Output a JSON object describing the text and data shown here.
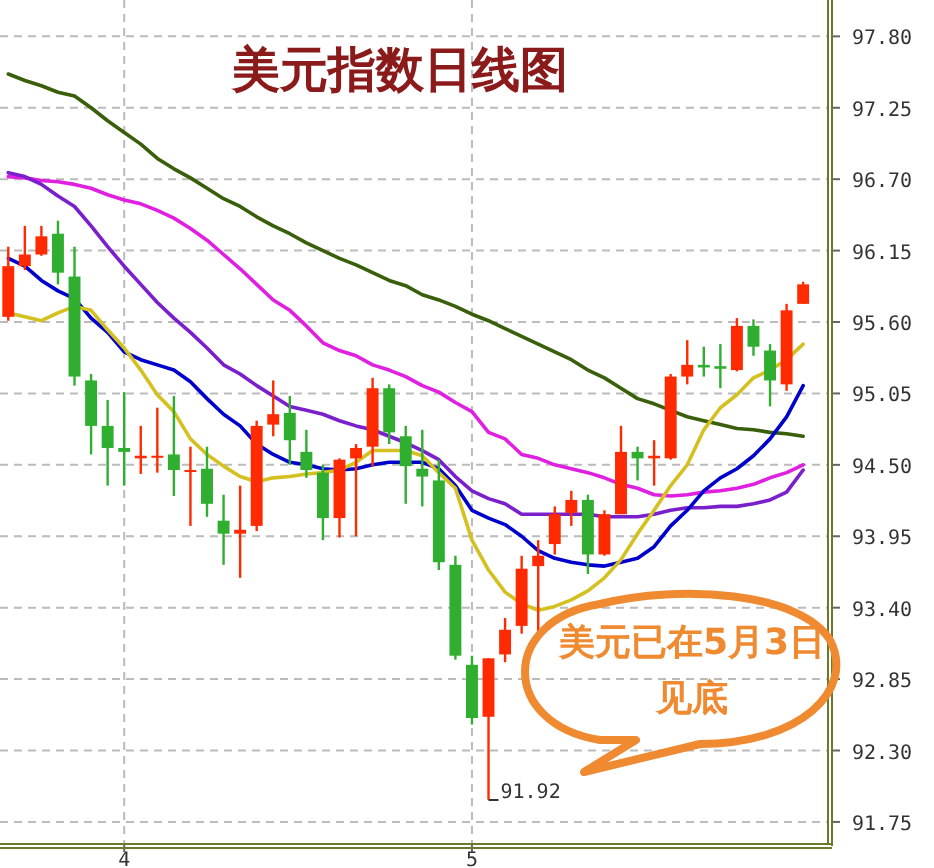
{
  "chart_data": {
    "type": "candlestick",
    "title": "美元指数日线图",
    "categories": [
      null,
      null,
      null,
      null,
      null,
      null,
      null,
      "4",
      null,
      null,
      null,
      null,
      null,
      null,
      null,
      null,
      null,
      null,
      null,
      null,
      null,
      null,
      null,
      null,
      null,
      null,
      null,
      null,
      "5",
      null,
      null,
      null,
      null,
      null,
      null,
      null,
      null,
      null,
      null,
      null,
      null,
      null,
      null,
      null,
      null,
      null,
      null,
      null,
      null
    ],
    "ohlc": [
      [
        95.64,
        96.18,
        95.61,
        96.03
      ],
      [
        96.03,
        96.34,
        96.0,
        96.12
      ],
      [
        96.12,
        96.34,
        96.11,
        96.26
      ],
      [
        96.28,
        96.38,
        95.89,
        95.98
      ],
      [
        95.95,
        96.18,
        95.11,
        95.18
      ],
      [
        95.15,
        95.2,
        94.58,
        94.8
      ],
      [
        94.8,
        95.0,
        94.34,
        94.63
      ],
      [
        94.63,
        95.06,
        94.34,
        94.6
      ],
      [
        94.55,
        94.8,
        94.43,
        94.57
      ],
      [
        94.56,
        94.94,
        94.44,
        94.57
      ],
      [
        94.58,
        95.03,
        94.26,
        94.46
      ],
      [
        94.45,
        94.64,
        94.03,
        94.46
      ],
      [
        94.47,
        94.64,
        94.1,
        94.2
      ],
      [
        94.07,
        94.27,
        93.73,
        93.97
      ],
      [
        93.97,
        94.34,
        93.63,
        94.0
      ],
      [
        94.03,
        94.84,
        93.99,
        94.8
      ],
      [
        94.81,
        95.15,
        94.72,
        94.89
      ],
      [
        94.9,
        95.03,
        94.5,
        94.69
      ],
      [
        94.6,
        94.77,
        94.4,
        94.46
      ],
      [
        94.44,
        94.5,
        93.92,
        94.09
      ],
      [
        94.09,
        94.55,
        93.94,
        94.54
      ],
      [
        94.55,
        94.66,
        93.95,
        94.63
      ],
      [
        94.64,
        95.17,
        94.49,
        95.09
      ],
      [
        95.09,
        95.12,
        94.66,
        94.75
      ],
      [
        94.72,
        94.8,
        94.2,
        94.49
      ],
      [
        94.47,
        94.77,
        94.18,
        94.41
      ],
      [
        94.38,
        94.54,
        93.69,
        93.75
      ],
      [
        93.73,
        93.8,
        93.0,
        93.03
      ],
      [
        92.96,
        93.03,
        92.5,
        92.55
      ],
      [
        92.56,
        93.01,
        91.92,
        93.01
      ],
      [
        93.04,
        93.32,
        92.98,
        93.23
      ],
      [
        93.26,
        93.8,
        93.2,
        93.7
      ],
      [
        93.72,
        93.92,
        93.15,
        93.8
      ],
      [
        93.89,
        94.18,
        93.81,
        94.12
      ],
      [
        94.13,
        94.3,
        94.03,
        94.23
      ],
      [
        94.23,
        94.27,
        93.66,
        93.81
      ],
      [
        93.81,
        94.15,
        93.8,
        94.12
      ],
      [
        94.12,
        94.8,
        94.12,
        94.6
      ],
      [
        94.6,
        94.64,
        94.38,
        94.55
      ],
      [
        94.55,
        94.69,
        94.34,
        94.57
      ],
      [
        94.55,
        95.2,
        94.54,
        95.18
      ],
      [
        95.18,
        95.46,
        95.12,
        95.27
      ],
      [
        95.27,
        95.41,
        95.18,
        95.25
      ],
      [
        95.26,
        95.43,
        95.09,
        95.24
      ],
      [
        95.23,
        95.63,
        95.22,
        95.57
      ],
      [
        95.57,
        95.62,
        95.34,
        95.41
      ],
      [
        95.38,
        95.43,
        94.95,
        95.15
      ],
      [
        95.12,
        95.74,
        95.07,
        95.69
      ],
      [
        95.74,
        95.91,
        95.74,
        95.89
      ]
    ],
    "colors": [
      "#ff2a00",
      "#ff2a00",
      "#ff2a00",
      "#2fae2f",
      "#2fae2f",
      "#2fae2f",
      "#2fae2f",
      "#2fae2f",
      "#ff2a00",
      "#ff2a00",
      "#2fae2f",
      "#ff2a00",
      "#2fae2f",
      "#2fae2f",
      "#ff2a00",
      "#ff2a00",
      "#ff2a00",
      "#2fae2f",
      "#2fae2f",
      "#2fae2f",
      "#ff2a00",
      "#ff2a00",
      "#ff2a00",
      "#2fae2f",
      "#2fae2f",
      "#2fae2f",
      "#2fae2f",
      "#2fae2f",
      "#2fae2f",
      "#ff2a00",
      "#ff2a00",
      "#ff2a00",
      "#ff2a00",
      "#ff2a00",
      "#ff2a00",
      "#2fae2f",
      "#ff2a00",
      "#ff2a00",
      "#2fae2f",
      "#ff2a00",
      "#ff2a00",
      "#ff2a00",
      "#2fae2f",
      "#2fae2f",
      "#ff2a00",
      "#2fae2f",
      "#2fae2f",
      "#ff2a00",
      "#ff2a00"
    ],
    "series": [
      {
        "type": "line",
        "color": "#3a5f0b",
        "values": [
          97.51,
          97.46,
          97.42,
          97.37,
          97.34,
          97.25,
          97.15,
          97.06,
          96.97,
          96.86,
          96.78,
          96.71,
          96.63,
          96.55,
          96.49,
          96.41,
          96.34,
          96.28,
          96.21,
          96.15,
          96.09,
          96.04,
          95.98,
          95.92,
          95.88,
          95.81,
          95.77,
          95.72,
          95.66,
          95.61,
          95.55,
          95.49,
          95.43,
          95.37,
          95.31,
          95.23,
          95.17,
          95.09,
          95.01,
          94.97,
          94.92,
          94.87,
          94.84,
          94.81,
          94.78,
          94.77,
          94.75,
          94.74,
          94.72
        ]
      },
      {
        "type": "line",
        "color": "#e020e0",
        "values": [
          96.72,
          96.71,
          96.69,
          96.68,
          96.66,
          96.63,
          96.58,
          96.54,
          96.51,
          96.46,
          96.4,
          96.32,
          96.23,
          96.12,
          96.01,
          95.89,
          95.77,
          95.69,
          95.57,
          95.44,
          95.38,
          95.34,
          95.27,
          95.23,
          95.18,
          95.11,
          95.06,
          94.98,
          94.91,
          94.75,
          94.7,
          94.58,
          94.55,
          94.5,
          94.47,
          94.44,
          94.4,
          94.35,
          94.32,
          94.27,
          94.26,
          94.27,
          94.29,
          94.3,
          94.32,
          94.35,
          94.4,
          94.44,
          94.5
        ]
      },
      {
        "type": "line",
        "color": "#7a1fcc",
        "values": [
          96.75,
          96.72,
          96.66,
          96.57,
          96.49,
          96.34,
          96.18,
          96.03,
          95.89,
          95.75,
          95.63,
          95.52,
          95.4,
          95.27,
          95.2,
          95.11,
          95.03,
          94.95,
          94.92,
          94.89,
          94.84,
          94.8,
          94.77,
          94.72,
          94.67,
          94.61,
          94.54,
          94.41,
          94.3,
          94.24,
          94.2,
          94.12,
          94.12,
          94.12,
          94.12,
          94.12,
          94.1,
          94.1,
          94.1,
          94.12,
          94.15,
          94.17,
          94.17,
          94.18,
          94.18,
          94.2,
          94.23,
          94.29,
          94.46
        ]
      },
      {
        "type": "line",
        "color": "#0000cc",
        "values": [
          96.09,
          96.03,
          95.92,
          95.84,
          95.78,
          95.63,
          95.52,
          95.37,
          95.31,
          95.27,
          95.23,
          95.14,
          95.01,
          94.89,
          94.8,
          94.66,
          94.58,
          94.52,
          94.5,
          94.47,
          94.46,
          94.47,
          94.5,
          94.52,
          94.52,
          94.52,
          94.47,
          94.34,
          94.15,
          94.09,
          94.04,
          93.95,
          93.84,
          93.78,
          93.75,
          93.73,
          93.72,
          93.75,
          93.78,
          93.87,
          94.03,
          94.15,
          94.3,
          94.4,
          94.47,
          94.57,
          94.7,
          94.87,
          95.11
        ]
      },
      {
        "type": "line",
        "color": "#d4c020",
        "values": [
          95.67,
          95.64,
          95.61,
          95.67,
          95.72,
          95.69,
          95.54,
          95.4,
          95.23,
          95.04,
          94.91,
          94.7,
          94.58,
          94.49,
          94.41,
          94.37,
          94.4,
          94.41,
          94.43,
          94.44,
          94.46,
          94.52,
          94.61,
          94.61,
          94.61,
          94.57,
          94.44,
          94.32,
          93.92,
          93.69,
          93.52,
          93.43,
          93.38,
          93.41,
          93.46,
          93.53,
          93.63,
          93.77,
          93.97,
          94.15,
          94.34,
          94.5,
          94.77,
          94.94,
          95.04,
          95.17,
          95.23,
          95.31,
          95.43
        ]
      }
    ],
    "ylim": [
      91.58,
      98.08
    ],
    "yticks": [
      {
        "value": 97.8,
        "label": "97.80"
      },
      {
        "value": 97.25,
        "label": "97.25"
      },
      {
        "value": 96.7,
        "label": "96.70"
      },
      {
        "value": 96.15,
        "label": "96.15"
      },
      {
        "value": 95.6,
        "label": "95.60"
      },
      {
        "value": 95.05,
        "label": "95.05"
      },
      {
        "value": 94.5,
        "label": "94.50"
      },
      {
        "value": 93.95,
        "label": "93.95"
      },
      {
        "value": 93.4,
        "label": "93.40"
      },
      {
        "value": 92.85,
        "label": "92.85"
      },
      {
        "value": 92.3,
        "label": "92.30"
      },
      {
        "value": 91.75,
        "label": "91.75"
      }
    ],
    "grid": true,
    "annotations": [
      "91.92",
      "美元已在5月3日见底"
    ]
  }
}
